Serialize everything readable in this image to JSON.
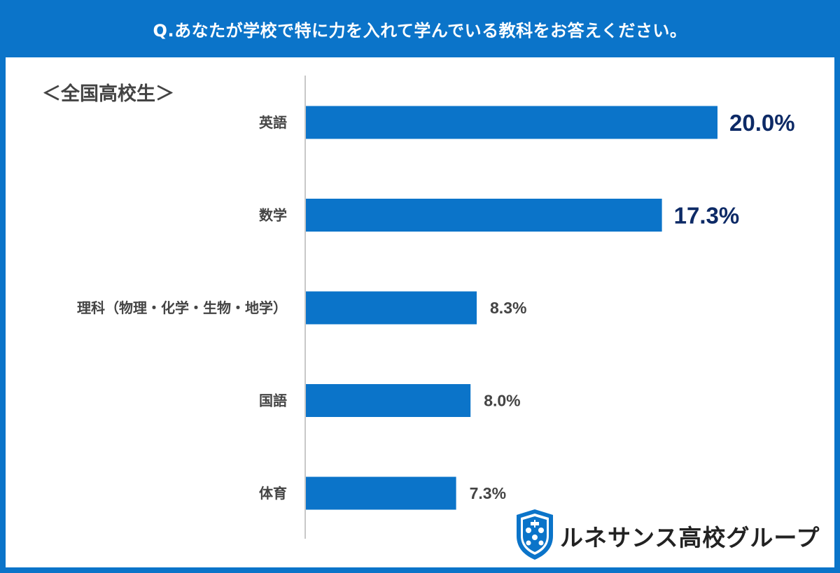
{
  "header": {
    "question": "Q.あなたが学校で特に力を入れて学んでいる教科をお答えください。"
  },
  "subtitle": "＜全国高校生＞",
  "brand": {
    "name": "ルネサンス高校グループ",
    "logo_icon": "shield-crest-icon"
  },
  "colors": {
    "accent": "#0b74c9",
    "bar": "#0b74c9",
    "value_highlight": "#0d2a66",
    "value_normal": "#444444"
  },
  "chart_data": {
    "type": "bar",
    "orientation": "horizontal",
    "categories": [
      "英語",
      "数学",
      "理科（物理・化学・生物・地学）",
      "国語",
      "体育"
    ],
    "values": [
      20.0,
      17.3,
      8.3,
      8.0,
      7.3
    ],
    "value_labels": [
      "20.0%",
      "17.3%",
      "8.3%",
      "8.0%",
      "7.3%"
    ],
    "unit": "%",
    "xlim": [
      0,
      20
    ],
    "grid": false,
    "legend": "none",
    "highlight_top": 2
  }
}
